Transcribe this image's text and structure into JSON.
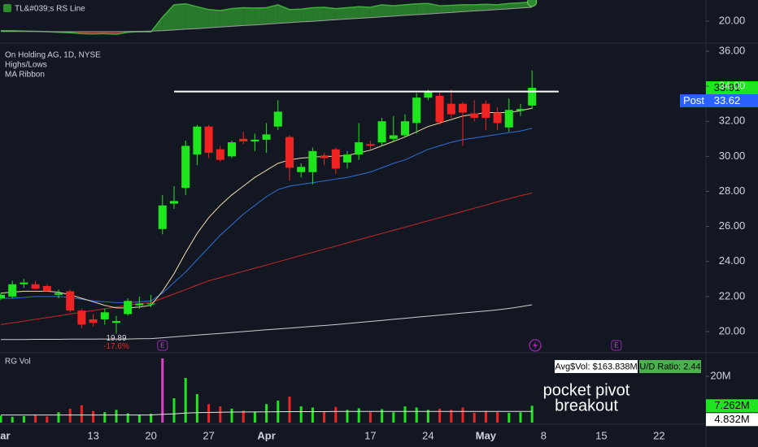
{
  "chart_data": [
    {
      "type": "area",
      "title": "TL&#039;s RS Line",
      "series": [
        {
          "color": "#3fae3a",
          "values": [
            19.5,
            19.5,
            19.48,
            19.47,
            19.45,
            19.42,
            19.4,
            19.35,
            19.33,
            19.35,
            19.32,
            19.42,
            19.45,
            19.44,
            20.2,
            20.85,
            20.9,
            20.75,
            20.6,
            20.55,
            20.65,
            20.7,
            20.68,
            20.7,
            20.85,
            20.6,
            20.62,
            20.7,
            20.72,
            20.65,
            20.7,
            20.75,
            20.72,
            20.85,
            20.8,
            20.85,
            20.9,
            20.92,
            20.8,
            20.82,
            20.85,
            20.85,
            20.88,
            20.85,
            20.92,
            20.95,
            21.0,
            null,
            null,
            null,
            null,
            null,
            null,
            null,
            null,
            null,
            null,
            null
          ]
        },
        {
          "color": "#9e9e9e",
          "values": [
            19.46,
            19.46,
            19.46,
            19.46,
            19.46,
            19.45,
            19.45,
            19.45,
            19.45,
            19.45,
            19.45,
            19.46,
            19.47,
            19.48,
            19.5,
            19.54,
            19.58,
            19.61,
            19.65,
            19.69,
            19.73,
            19.77,
            19.8,
            19.84,
            19.88,
            19.92,
            19.96,
            19.99,
            20.03,
            20.07,
            20.11,
            20.15,
            20.18,
            20.22,
            20.26,
            20.3,
            20.34,
            20.37,
            20.41,
            20.45,
            20.49,
            20.53,
            20.56,
            20.6,
            20.64,
            20.68,
            20.72,
            null,
            null,
            null,
            null,
            null,
            null,
            null,
            null,
            null,
            null,
            null
          ]
        }
      ],
      "above_color": "#2e8b2e",
      "below_color": "#a3262b",
      "ylim": [
        18.9,
        21.1
      ],
      "yticks": [
        {
          "value": 20,
          "label": "20.00"
        }
      ]
    },
    {
      "type": "candlestick",
      "title": "On Holding AG, 1D, NYSE",
      "indicators": [
        "Highs/Lows",
        "MA Ribbon"
      ],
      "categories": [
        "Mar",
        null,
        null,
        null,
        null,
        null,
        null,
        null,
        "13",
        null,
        null,
        null,
        null,
        "20",
        null,
        null,
        null,
        null,
        "27",
        null,
        null,
        null,
        null,
        "Apr",
        null,
        null,
        null,
        null,
        null,
        null,
        null,
        null,
        "17",
        null,
        null,
        null,
        null,
        "24",
        null,
        null,
        null,
        null,
        "May",
        null,
        null,
        null,
        null,
        "8",
        null,
        null,
        null,
        null,
        "15",
        null,
        null,
        null,
        null,
        "22"
      ],
      "open": [
        21.9,
        22.0,
        22.7,
        22.7,
        22.6,
        22.1,
        22.3,
        21.2,
        20.7,
        20.7,
        20.5,
        21.0,
        21.5,
        21.55,
        25.85,
        27.3,
        28.2,
        30.1,
        31.7,
        30.4,
        30.0,
        31.0,
        30.85,
        30.95,
        31.7,
        31.1,
        29.1,
        29.1,
        30.05,
        30.4,
        29.65,
        30.1,
        30.7,
        30.8,
        31.0,
        31.2,
        31.9,
        33.35,
        33.45,
        33.0,
        33.0,
        32.45,
        33.0,
        32.5,
        31.65,
        32.6,
        32.9,
        null,
        null,
        null,
        null,
        null,
        null,
        null,
        null,
        null,
        null,
        null
      ],
      "high": [
        22.2,
        22.9,
        23.0,
        22.9,
        22.7,
        22.4,
        22.4,
        21.3,
        21.0,
        21.3,
        20.9,
        21.9,
        22.0,
        22.1,
        27.8,
        28.3,
        30.9,
        31.8,
        31.8,
        30.6,
        30.9,
        31.4,
        31.3,
        31.9,
        33.2,
        31.2,
        29.6,
        30.5,
        30.2,
        30.5,
        30.3,
        31.9,
        30.9,
        32.2,
        32.3,
        32.4,
        33.6,
        33.8,
        33.7,
        33.8,
        33.1,
        33.2,
        33.2,
        32.8,
        33.3,
        33.0,
        34.9,
        null,
        null,
        null,
        null,
        null,
        null,
        null,
        null,
        null,
        null,
        null
      ],
      "low": [
        21.8,
        21.9,
        22.5,
        22.4,
        22.3,
        21.9,
        21.1,
        20.2,
        20.3,
        20.4,
        19.89,
        20.9,
        21.3,
        21.4,
        25.55,
        27.0,
        27.8,
        29.5,
        29.9,
        29.7,
        29.9,
        30.7,
        30.3,
        30.2,
        31.5,
        28.6,
        28.8,
        28.4,
        29.5,
        29.0,
        29.3,
        29.8,
        30.4,
        30.6,
        30.9,
        31.1,
        31.3,
        33.2,
        31.8,
        32.2,
        30.6,
        32.0,
        31.5,
        31.5,
        31.4,
        32.3,
        32.7,
        null,
        null,
        null,
        null,
        null,
        null,
        null,
        null,
        null,
        null,
        null
      ],
      "close": [
        22.1,
        22.7,
        22.8,
        22.45,
        22.3,
        22.2,
        21.2,
        20.4,
        20.5,
        21.1,
        20.6,
        21.75,
        21.6,
        21.6,
        27.2,
        27.45,
        30.6,
        31.7,
        30.2,
        29.8,
        30.8,
        30.85,
        30.95,
        31.25,
        32.55,
        29.35,
        29.4,
        30.3,
        29.9,
        29.3,
        30.1,
        30.8,
        30.6,
        32.0,
        31.2,
        32.0,
        33.35,
        33.7,
        31.95,
        32.4,
        32.5,
        32.2,
        32.2,
        31.9,
        32.65,
        32.7,
        33.91,
        null,
        null,
        null,
        null,
        null,
        null,
        null,
        null,
        null,
        null,
        null
      ],
      "up_color": "#1ee61e",
      "down_color": "#f02323",
      "series": [
        {
          "color": "#f0dcb0",
          "values": [
            22.2,
            22.25,
            22.3,
            22.3,
            22.3,
            22.25,
            22.1,
            21.9,
            21.7,
            21.5,
            21.35,
            21.35,
            21.4,
            21.5,
            22.3,
            23.3,
            24.5,
            25.6,
            26.5,
            27.2,
            27.8,
            28.3,
            28.8,
            29.2,
            29.6,
            29.8,
            29.9,
            29.95,
            30.0,
            30.0,
            30.05,
            30.2,
            30.35,
            30.6,
            30.85,
            31.1,
            31.4,
            31.7,
            31.9,
            32.1,
            32.3,
            32.4,
            32.5,
            32.5,
            32.5,
            32.6,
            32.75,
            null,
            null,
            null,
            null,
            null,
            null,
            null,
            null,
            null,
            null,
            null
          ]
        },
        {
          "color": "#2f6fd8",
          "values": [
            21.9,
            21.9,
            21.95,
            22.0,
            22.0,
            22.0,
            21.95,
            21.85,
            21.75,
            21.7,
            21.65,
            21.65,
            21.7,
            21.75,
            22.2,
            22.8,
            23.4,
            24.1,
            24.8,
            25.5,
            26.1,
            26.7,
            27.2,
            27.7,
            28.1,
            28.3,
            28.4,
            28.5,
            28.6,
            28.7,
            28.8,
            28.95,
            29.1,
            29.35,
            29.6,
            29.8,
            30.1,
            30.4,
            30.6,
            30.8,
            30.95,
            31.05,
            31.15,
            31.25,
            31.35,
            31.45,
            31.6,
            null,
            null,
            null,
            null,
            null,
            null,
            null,
            null,
            null,
            null,
            null
          ]
        },
        {
          "color": "#c62828",
          "values": [
            20.4,
            20.5,
            20.6,
            20.7,
            20.8,
            20.9,
            21.0,
            21.1,
            21.2,
            21.3,
            21.4,
            21.5,
            21.6,
            21.65,
            21.9,
            22.15,
            22.4,
            22.65,
            22.9,
            23.08,
            23.26,
            23.44,
            23.62,
            23.8,
            23.98,
            24.16,
            24.34,
            24.52,
            24.7,
            24.88,
            25.06,
            25.24,
            25.42,
            25.6,
            25.78,
            25.96,
            26.14,
            26.32,
            26.5,
            26.68,
            26.86,
            27.04,
            27.22,
            27.4,
            27.58,
            27.76,
            27.9,
            null,
            null,
            null,
            null,
            null,
            null,
            null,
            null,
            null,
            null,
            null
          ]
        },
        {
          "color": "#cfcfcf",
          "values": [
            19.55,
            19.55,
            19.55,
            19.56,
            19.56,
            19.56,
            19.57,
            19.57,
            19.57,
            19.58,
            19.58,
            19.58,
            19.59,
            19.6,
            19.65,
            19.7,
            19.75,
            19.8,
            19.85,
            19.9,
            19.95,
            20.0,
            20.05,
            20.1,
            20.15,
            20.2,
            20.25,
            20.3,
            20.35,
            20.4,
            20.46,
            20.52,
            20.58,
            20.64,
            20.7,
            20.76,
            20.82,
            20.88,
            20.94,
            21.0,
            21.06,
            21.12,
            21.18,
            21.24,
            21.32,
            21.42,
            21.53,
            null,
            null,
            null,
            null,
            null,
            null,
            null,
            null,
            null,
            null,
            null
          ]
        }
      ],
      "ylim": [
        18.98,
        36.37
      ],
      "yticks": [
        {
          "value": 20,
          "label": "20.00"
        },
        {
          "value": 22,
          "label": "22.00"
        },
        {
          "value": 24,
          "label": "24.00"
        },
        {
          "value": 26,
          "label": "26.00"
        },
        {
          "value": 28,
          "label": "28.00"
        },
        {
          "value": 30,
          "label": "30.00"
        },
        {
          "value": 32,
          "label": "32.00"
        },
        {
          "value": 34,
          "label": "34.00"
        },
        {
          "value": 36,
          "label": "36.00"
        }
      ],
      "hline": 33.7,
      "hline_color": "#ffffff",
      "low_marker": {
        "value": 19.89,
        "change": {
          "value": -17.6,
          "label": "-17.6%"
        }
      },
      "post": {
        "label": "Post",
        "value": 33.62,
        "color": "#2962ff"
      },
      "events": [
        {
          "label": "E"
        },
        {
          "label": "E"
        }
      ]
    },
    {
      "type": "bar",
      "title": "RG Vol",
      "values": [
        3,
        2.5,
        2.8,
        3.2,
        2.6,
        4.5,
        6,
        7.5,
        5,
        4.5,
        5.5,
        4,
        3.5,
        3.8,
        27.7,
        10.5,
        19.3,
        12.3,
        8,
        7,
        6,
        5.2,
        4.8,
        8,
        9.5,
        11.2,
        7,
        6.5,
        5,
        6.8,
        5.5,
        6.2,
        4.5,
        5.8,
        4.5,
        7,
        6.5,
        5.5,
        6,
        5.5,
        6.5,
        4.2,
        5,
        4.5,
        4.2,
        4.5,
        7.262,
        null,
        null,
        null,
        null,
        null,
        null,
        null,
        null,
        null,
        null,
        null
      ],
      "ma": {
        "color": "#e6e6e6",
        "values": [
          3.3,
          3.3,
          3.3,
          3.3,
          3.3,
          3.3,
          3.3,
          3.3,
          3.3,
          3.3,
          3.3,
          3.3,
          3.3,
          3.3,
          3.6,
          3.8,
          4.1,
          4.3,
          4.4,
          4.5,
          4.55,
          4.6,
          4.6,
          4.65,
          4.7,
          4.75,
          4.75,
          4.75,
          4.75,
          4.8,
          4.8,
          4.8,
          4.8,
          4.8,
          4.8,
          4.8,
          4.8,
          4.8,
          4.8,
          4.8,
          4.8,
          4.8,
          4.8,
          4.8,
          4.81,
          4.82,
          4.832,
          null,
          null,
          null,
          null,
          null,
          null,
          null,
          null,
          null,
          null,
          null
        ]
      },
      "highlight": {
        "index": 14,
        "color": "#e040c8"
      },
      "ylim": [
        0,
        29.1
      ],
      "yticks": [
        {
          "value": 20,
          "label": "20M"
        }
      ],
      "last_badge": {
        "value": 7.262,
        "label": "7.262M",
        "color": "#1ee61e"
      },
      "ma_badge": {
        "value": 4.832,
        "label": "4.832M",
        "color": "#ffffff"
      },
      "avg_dollar_vol": "Avg$Vol: $163.838M",
      "ud_ratio": "U/D Ratio: 2.44",
      "annotation": [
        "pocket pivot",
        "breakout"
      ]
    }
  ]
}
